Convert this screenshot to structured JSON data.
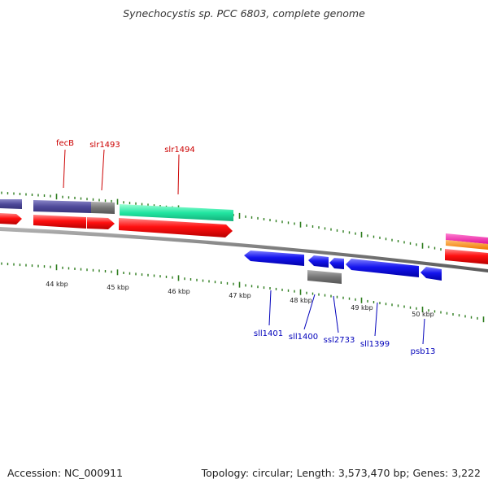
{
  "title": "Synechocystis sp. PCC 6803, complete genome",
  "footer": {
    "accession": "Accession: NC_000911",
    "summary": "Topology: circular; Length: 3,573,470 bp; Genes: 3,222"
  },
  "colors": {
    "forward_label": "#cc0000",
    "reverse_label": "#0000bb",
    "tick": "#2e7d1e",
    "backbone": "#8a8a8a"
  },
  "scale_labels": [
    "44 kbp",
    "45 kbp",
    "46 kbp",
    "47 kbp",
    "48 kbp",
    "49 kbp",
    "50 kbp"
  ],
  "genes_forward": [
    {
      "label": "fecB",
      "color": "red"
    },
    {
      "label": "slr1493",
      "color": "red"
    },
    {
      "label": "slr1494",
      "color": "red"
    }
  ],
  "genes_reverse": [
    {
      "label": "sll1401",
      "color": "blue"
    },
    {
      "label": "sll1400",
      "color": "blue"
    },
    {
      "label": "ssl2733",
      "color": "blue"
    },
    {
      "label": "sll1399",
      "color": "blue"
    },
    {
      "label": "psb13",
      "color": "blue"
    }
  ]
}
